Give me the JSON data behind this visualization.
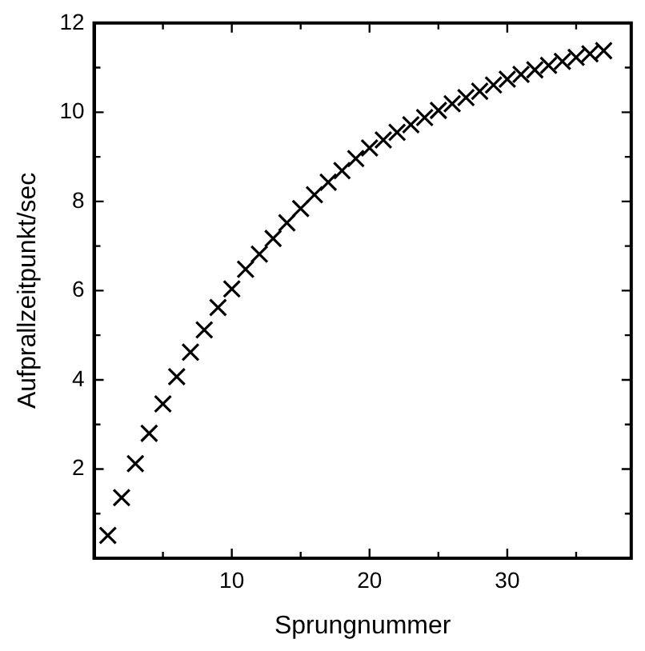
{
  "chart_data": {
    "type": "scatter",
    "xlabel": "Sprungnummer",
    "ylabel": "Aufprallzeitpunkt/sec",
    "x": [
      1,
      2,
      3,
      4,
      5,
      6,
      7,
      8,
      9,
      10,
      11,
      12,
      13,
      14,
      15,
      16,
      17,
      18,
      19,
      20,
      21,
      22,
      23,
      24,
      25,
      26,
      27,
      28,
      29,
      30,
      31,
      32,
      33,
      34,
      35,
      36,
      37
    ],
    "series": [
      {
        "color": "#000000",
        "values": [
          0.51,
          1.36,
          2.12,
          2.8,
          3.46,
          4.07,
          4.62,
          5.12,
          5.62,
          6.04,
          6.48,
          6.82,
          7.17,
          7.52,
          7.84,
          8.15,
          8.43,
          8.69,
          8.96,
          9.2,
          9.38,
          9.55,
          9.72,
          9.88,
          10.04,
          10.19,
          10.33,
          10.47,
          10.61,
          10.74,
          10.85,
          10.95,
          11.05,
          11.14,
          11.23,
          11.31,
          11.38
        ]
      }
    ],
    "xlim": [
      0,
      39
    ],
    "ylim": [
      0,
      12
    ],
    "xticks": [
      {
        "value": 5,
        "label": null
      },
      10,
      {
        "value": 15,
        "label": null
      },
      20,
      {
        "value": 25,
        "label": null
      },
      30,
      {
        "value": 35,
        "label": null
      }
    ],
    "yticks": [
      {
        "value": 1,
        "label": null
      },
      2,
      {
        "value": 3,
        "label": null
      },
      4,
      {
        "value": 5,
        "label": null
      },
      6,
      {
        "value": 7,
        "label": null
      },
      8,
      {
        "value": 9,
        "label": null
      },
      10,
      {
        "value": 11,
        "label": null
      },
      12
    ],
    "grid": false,
    "legend": false,
    "marker": "cross"
  }
}
